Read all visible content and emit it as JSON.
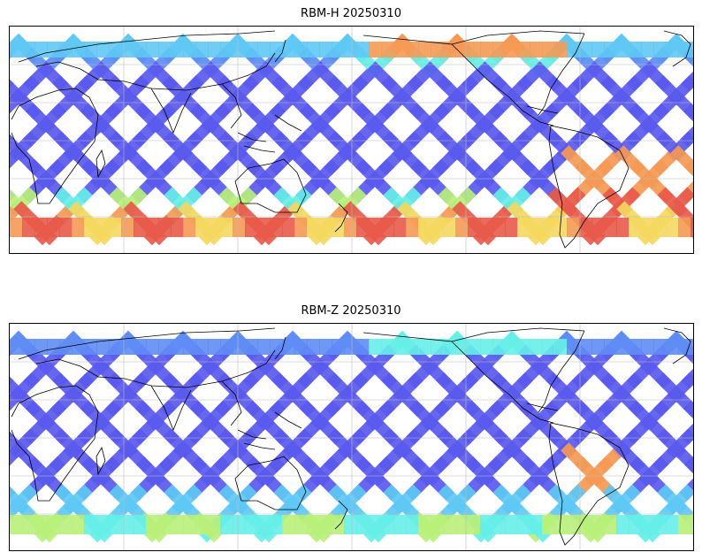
{
  "panels": [
    {
      "title": "RBM-H 20250310",
      "dominant": "high-south"
    },
    {
      "title": "RBM-Z 20250310",
      "dominant": "low"
    }
  ],
  "colors": {
    "low": "#5a5aee",
    "low_mid": "#5f8cf5",
    "mid": "#5fc8f5",
    "cyan": "#66eee8",
    "green": "#b8f07a",
    "yellow": "#f5d860",
    "orange": "#f59a55",
    "red": "#e85a4a",
    "dark_red": "#c85055",
    "coast": "#000000",
    "grid": "#bbbbbb"
  },
  "colormap": "jet"
}
